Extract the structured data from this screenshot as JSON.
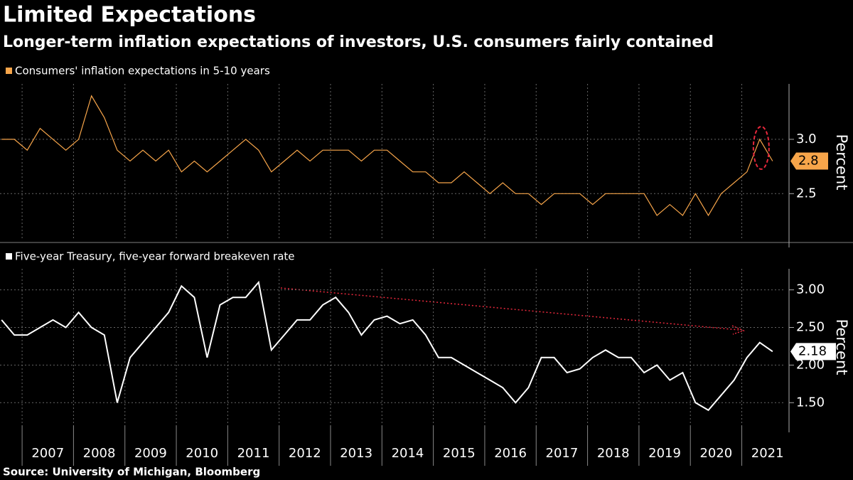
{
  "title": "Limited Expectations",
  "subtitle": "Longer-term inflation expectations of investors, U.S. consumers fairly contained",
  "source": "Source: University of Michigan, Bloomberg",
  "chart_data": [
    {
      "type": "line",
      "series": [
        {
          "name": "Consumers' inflation expectations in 5-10 years",
          "color": "#f7a54a",
          "values": [
            3.0,
            3.0,
            2.9,
            3.1,
            3.0,
            2.9,
            3.0,
            3.4,
            3.2,
            2.9,
            2.8,
            2.9,
            2.8,
            2.9,
            2.7,
            2.8,
            2.7,
            2.8,
            2.9,
            3.0,
            2.9,
            2.7,
            2.8,
            2.9,
            2.8,
            2.9,
            2.9,
            2.9,
            2.8,
            2.9,
            2.9,
            2.8,
            2.7,
            2.7,
            2.6,
            2.6,
            2.7,
            2.6,
            2.5,
            2.6,
            2.5,
            2.5,
            2.4,
            2.5,
            2.5,
            2.5,
            2.4,
            2.5,
            2.5,
            2.5,
            2.5,
            2.3,
            2.4,
            2.3,
            2.5,
            2.3,
            2.5,
            2.6,
            2.7,
            3.0,
            2.8
          ]
        }
      ],
      "x": [
        2006.6,
        2006.85,
        2007.1,
        2007.35,
        2007.6,
        2007.85,
        2008.1,
        2008.35,
        2008.6,
        2008.85,
        2009.1,
        2009.35,
        2009.6,
        2009.85,
        2010.1,
        2010.35,
        2010.6,
        2010.85,
        2011.1,
        2011.35,
        2011.6,
        2011.85,
        2012.1,
        2012.35,
        2012.6,
        2012.85,
        2013.1,
        2013.35,
        2013.6,
        2013.85,
        2014.1,
        2014.35,
        2014.6,
        2014.85,
        2015.1,
        2015.35,
        2015.6,
        2015.85,
        2016.1,
        2016.35,
        2016.6,
        2016.85,
        2017.1,
        2017.35,
        2017.6,
        2017.85,
        2018.1,
        2018.35,
        2018.6,
        2018.85,
        2019.1,
        2019.35,
        2019.6,
        2019.85,
        2020.1,
        2020.35,
        2020.6,
        2020.85,
        2021.1,
        2021.35,
        2021.6
      ],
      "xlim": [
        2006.57,
        2021.85
      ],
      "ylim": [
        2.07,
        3.51
      ],
      "yticks": [
        2.5,
        {
          "value": 3,
          "label": "3.0"
        }
      ],
      "ylabel": "Percent",
      "grid": true
    },
    {
      "type": "line",
      "series": [
        {
          "name": "Five-year Treasury, five-year forward breakeven rate",
          "color": "#ffffff",
          "values": [
            2.6,
            2.4,
            2.4,
            2.5,
            2.6,
            2.5,
            2.7,
            2.5,
            2.4,
            1.5,
            2.1,
            2.3,
            2.5,
            2.7,
            3.05,
            2.9,
            2.1,
            2.8,
            2.9,
            2.9,
            3.1,
            2.2,
            2.4,
            2.6,
            2.6,
            2.8,
            2.9,
            2.7,
            2.4,
            2.6,
            2.65,
            2.55,
            2.6,
            2.4,
            2.1,
            2.1,
            2.0,
            1.9,
            1.8,
            1.7,
            1.5,
            1.7,
            2.1,
            2.1,
            1.9,
            1.95,
            2.1,
            2.2,
            2.1,
            2.1,
            1.9,
            2.0,
            1.8,
            1.9,
            1.5,
            1.4,
            1.6,
            1.8,
            2.1,
            2.3,
            2.18
          ]
        }
      ],
      "x": [
        2006.6,
        2006.85,
        2007.1,
        2007.35,
        2007.6,
        2007.85,
        2008.1,
        2008.35,
        2008.6,
        2008.85,
        2009.1,
        2009.35,
        2009.6,
        2009.85,
        2010.1,
        2010.35,
        2010.6,
        2010.85,
        2011.1,
        2011.35,
        2011.6,
        2011.85,
        2012.1,
        2012.35,
        2012.6,
        2012.85,
        2013.1,
        2013.35,
        2013.6,
        2013.85,
        2014.1,
        2014.35,
        2014.6,
        2014.85,
        2015.1,
        2015.35,
        2015.6,
        2015.85,
        2016.1,
        2016.35,
        2016.6,
        2016.85,
        2017.1,
        2017.35,
        2017.6,
        2017.85,
        2018.1,
        2018.35,
        2018.6,
        2018.85,
        2019.1,
        2019.35,
        2019.6,
        2019.85,
        2020.1,
        2020.35,
        2020.6,
        2020.85,
        2021.1,
        2021.35,
        2021.6
      ],
      "xlim": [
        2006.57,
        2021.85
      ],
      "xticks": [
        {
          "value": 2007,
          "label": "2007"
        },
        {
          "value": 2008,
          "label": "2008"
        },
        {
          "value": 2009,
          "label": "2009"
        },
        {
          "value": 2010,
          "label": "2010"
        },
        {
          "value": 2011,
          "label": "2011"
        },
        {
          "value": 2012,
          "label": "2012"
        },
        {
          "value": 2013,
          "label": "2013"
        },
        {
          "value": 2014,
          "label": "2014"
        },
        {
          "value": 2015,
          "label": "2015"
        },
        {
          "value": 2016,
          "label": "2016"
        },
        {
          "value": 2017,
          "label": "2017"
        },
        {
          "value": 2018,
          "label": "2018"
        },
        {
          "value": 2019,
          "label": "2019"
        },
        {
          "value": 2020,
          "label": "2020"
        },
        {
          "value": 2021,
          "label": "2021"
        }
      ],
      "ylim": [
        1.2,
        3.28
      ],
      "yticks": [
        {
          "value": 1.5,
          "label": "1.50"
        },
        {
          "value": 2,
          "label": "2.00"
        },
        {
          "value": 2.5,
          "label": "2.50"
        },
        {
          "value": 3,
          "label": "3.00"
        }
      ],
      "ylabel": "Percent",
      "grid": true
    }
  ]
}
